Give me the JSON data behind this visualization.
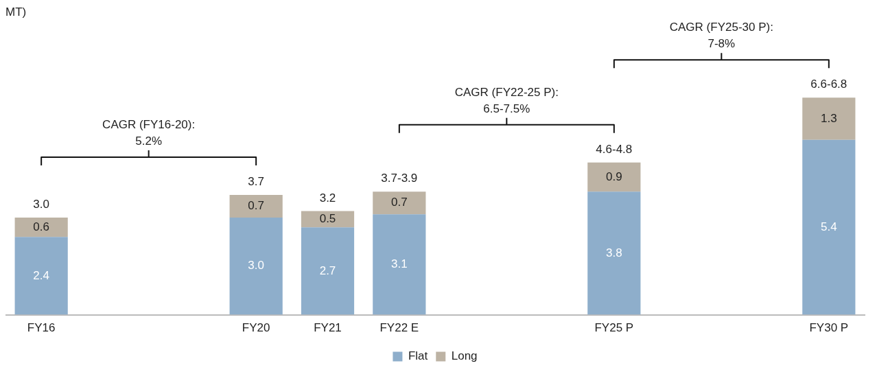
{
  "chart_data": {
    "type": "bar",
    "title": "MT)",
    "stacked": true,
    "legend": "bottom",
    "categories": [
      "FY16",
      null,
      null,
      "FY20",
      "FY21",
      "FY22 E",
      null,
      null,
      "FY25 P",
      null,
      null,
      "FY30 P"
    ],
    "series": [
      {
        "name": "Flat",
        "color": "#8eaecb",
        "values": [
          2.4,
          null,
          null,
          3.0,
          2.7,
          3.1,
          null,
          null,
          3.8,
          null,
          null,
          5.4
        ],
        "value_labels": [
          "2.4",
          null,
          null,
          "3.0",
          "2.7",
          "3.1",
          null,
          null,
          "3.8",
          null,
          null,
          "5.4"
        ]
      },
      {
        "name": "Long",
        "color": "#bdb3a4",
        "values": [
          0.6,
          null,
          null,
          0.7,
          0.5,
          0.7,
          null,
          null,
          0.9,
          null,
          null,
          1.3
        ],
        "value_labels": [
          "0.6",
          null,
          null,
          "0.7",
          "0.5",
          "0.7",
          null,
          null,
          "0.9",
          null,
          null,
          "1.3"
        ]
      }
    ],
    "totals": [
      "3.0",
      null,
      null,
      "3.7",
      "3.2",
      "3.7-3.9",
      null,
      null,
      "4.6-4.8",
      null,
      null,
      "6.6-6.8"
    ],
    "annotations": [
      "CAGR (FY16-20):\n5.2%",
      "CAGR (FY22-25 P):\n6.5-7.5%",
      "CAGR (FY25-30 P):\n7-8%"
    ]
  }
}
